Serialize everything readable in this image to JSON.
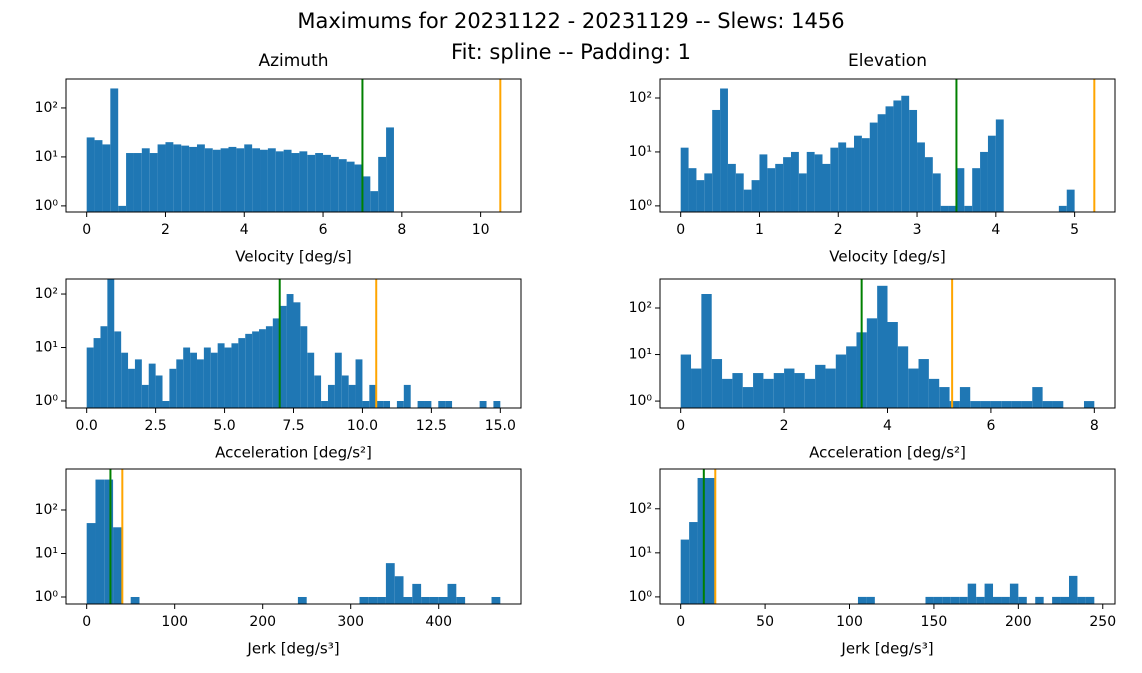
{
  "title_lines": [
    "Maximums for 20231122 - 20231129 -- Slews: 1456",
    "Fit: spline -- Padding: 1"
  ],
  "chart_data": [
    {
      "type": "histogram",
      "title": "Azimuth",
      "xlabel": "Velocity [deg/s]",
      "color": "#1f77b4",
      "log_y": true,
      "bins": [
        0,
        0.2,
        0.4,
        0.6,
        0.8,
        1.0,
        1.2,
        1.4,
        1.6,
        1.8,
        2.0,
        2.2,
        2.4,
        2.6,
        2.8,
        3.0,
        3.2,
        3.4,
        3.6,
        3.8,
        4.0,
        4.2,
        4.4,
        4.6,
        4.8,
        5.0,
        5.2,
        5.4,
        5.6,
        5.8,
        6.0,
        6.2,
        6.4,
        6.6,
        6.8,
        7.0,
        7.2,
        7.4,
        7.6,
        7.8
      ],
      "counts": [
        25,
        22,
        18,
        250,
        1,
        12,
        12,
        15,
        12,
        18,
        20,
        18,
        17,
        16,
        18,
        15,
        14,
        15,
        16,
        15,
        18,
        15,
        14,
        15,
        13,
        14,
        12,
        13,
        11,
        12,
        11,
        10,
        9,
        8,
        7,
        4,
        2,
        10,
        40
      ],
      "vlines": [
        {
          "x": 7,
          "color": "green"
        },
        {
          "x": 10.5,
          "color": "orange"
        }
      ],
      "xlim": [
        -0.525,
        11.025
      ],
      "xticks": [
        0,
        2,
        4,
        6,
        8,
        10
      ],
      "ylim": [
        0.75,
        390
      ],
      "yticks": [
        {
          "value": 1,
          "label": "10⁰"
        },
        {
          "value": 10,
          "label": "10¹"
        },
        {
          "value": 100,
          "label": "10²"
        }
      ]
    },
    {
      "type": "histogram",
      "title": "Elevation",
      "xlabel": "Velocity [deg/s]",
      "color": "#1f77b4",
      "log_y": true,
      "bins": [
        0,
        0.1,
        0.2,
        0.3,
        0.4,
        0.5,
        0.6,
        0.7,
        0.8,
        0.9,
        1.0,
        1.1,
        1.2,
        1.3,
        1.4,
        1.5,
        1.6,
        1.7,
        1.8,
        1.9,
        2.0,
        2.1,
        2.2,
        2.3,
        2.4,
        2.5,
        2.6,
        2.7,
        2.8,
        2.9,
        3.0,
        3.1,
        3.2,
        3.3,
        3.4,
        3.5,
        3.6,
        3.7,
        3.8,
        3.9,
        4.0,
        4.1,
        4.2,
        4.3,
        4.4,
        4.5,
        4.6,
        4.7,
        4.8,
        4.9,
        5.0
      ],
      "counts": [
        12,
        5,
        3,
        4,
        60,
        150,
        6,
        4,
        2,
        3,
        9,
        5,
        6,
        8,
        10,
        4,
        10,
        9,
        6,
        12,
        15,
        12,
        20,
        18,
        35,
        50,
        70,
        90,
        110,
        60,
        15,
        8,
        4,
        1,
        1,
        5,
        1,
        5,
        10,
        20,
        40,
        0,
        0,
        0,
        0,
        0,
        0,
        0,
        1,
        2
      ],
      "vlines": [
        {
          "x": 3.5,
          "color": "green"
        },
        {
          "x": 5.25,
          "color": "orange"
        }
      ],
      "xlim": [
        -0.2625,
        5.5125
      ],
      "xticks": [
        0,
        1,
        2,
        3,
        4,
        5
      ],
      "ylim": [
        0.77,
        225
      ],
      "yticks": [
        {
          "value": 1,
          "label": "10⁰"
        },
        {
          "value": 10,
          "label": "10¹"
        },
        {
          "value": 100,
          "label": "10²"
        }
      ]
    },
    {
      "type": "histogram",
      "xlabel": "Acceleration [deg/s²]",
      "color": "#1f77b4",
      "log_y": true,
      "bins": [
        0,
        0.25,
        0.5,
        0.75,
        1.0,
        1.25,
        1.5,
        1.75,
        2.0,
        2.25,
        2.5,
        2.75,
        3.0,
        3.25,
        3.5,
        3.75,
        4.0,
        4.25,
        4.5,
        4.75,
        5.0,
        5.25,
        5.5,
        5.75,
        6.0,
        6.25,
        6.5,
        6.75,
        7.0,
        7.25,
        7.5,
        7.75,
        8.0,
        8.25,
        8.5,
        8.75,
        9.0,
        9.25,
        9.5,
        9.75,
        10.0,
        10.25,
        10.5,
        10.75,
        11.0,
        11.25,
        11.5,
        11.75,
        12.0,
        12.25,
        12.5,
        12.75,
        13.0,
        13.25,
        13.5,
        13.75,
        14.0,
        14.25,
        14.5,
        14.75,
        15.0
      ],
      "counts": [
        10,
        15,
        25,
        200,
        20,
        8,
        4,
        6,
        2,
        5,
        3,
        1,
        4,
        6,
        10,
        8,
        6,
        10,
        8,
        12,
        10,
        12,
        15,
        18,
        20,
        22,
        25,
        35,
        60,
        100,
        70,
        25,
        8,
        3,
        1,
        2,
        8,
        3,
        2,
        6,
        1,
        2,
        1,
        1,
        0,
        1,
        2,
        0,
        1,
        1,
        0,
        1,
        1,
        0,
        0,
        0,
        0,
        1,
        0,
        1
      ],
      "vlines": [
        {
          "x": 7,
          "color": "green"
        },
        {
          "x": 10.5,
          "color": "orange"
        }
      ],
      "xlim": [
        -0.75,
        15.75
      ],
      "xticks": [
        {
          "value": 0,
          "label": "0.0"
        },
        2.5,
        {
          "value": 5,
          "label": "5.0"
        },
        7.5,
        {
          "value": 10,
          "label": "10.0"
        },
        12.5,
        {
          "value": 15,
          "label": "15.0"
        }
      ],
      "ylim": [
        0.74,
        191
      ],
      "yticks": [
        {
          "value": 1,
          "label": "10⁰"
        },
        {
          "value": 10,
          "label": "10¹"
        },
        {
          "value": 100,
          "label": "10²"
        }
      ]
    },
    {
      "type": "histogram",
      "xlabel": "Acceleration [deg/s²]",
      "color": "#1f77b4",
      "log_y": true,
      "bins": [
        0,
        0.2,
        0.4,
        0.6,
        0.8,
        1.0,
        1.2,
        1.4,
        1.6,
        1.8,
        2.0,
        2.2,
        2.4,
        2.6,
        2.8,
        3.0,
        3.2,
        3.4,
        3.6,
        3.8,
        4.0,
        4.2,
        4.4,
        4.6,
        4.8,
        5.0,
        5.2,
        5.4,
        5.6,
        5.8,
        6.0,
        6.2,
        6.4,
        6.6,
        6.8,
        7.0,
        7.2,
        7.4,
        7.6,
        7.8,
        8.0
      ],
      "counts": [
        10,
        5,
        200,
        8,
        3,
        4,
        2,
        4,
        3,
        4,
        5,
        4,
        3,
        6,
        5,
        10,
        15,
        30,
        60,
        300,
        50,
        15,
        5,
        8,
        3,
        2,
        1,
        2,
        1,
        1,
        1,
        1,
        1,
        1,
        2,
        1,
        1,
        0,
        0,
        1
      ],
      "vlines": [
        {
          "x": 3.5,
          "color": "green"
        },
        {
          "x": 5.25,
          "color": "orange"
        }
      ],
      "xlim": [
        -0.4,
        8.4
      ],
      "xticks": [
        0,
        2,
        4,
        6,
        8
      ],
      "ylim": [
        0.71,
        420
      ],
      "yticks": [
        {
          "value": 1,
          "label": "10⁰"
        },
        {
          "value": 10,
          "label": "10¹"
        },
        {
          "value": 100,
          "label": "10²"
        }
      ]
    },
    {
      "type": "histogram",
      "xlabel": "Jerk [deg/s³]",
      "color": "#1f77b4",
      "log_y": true,
      "bins": [
        0,
        10,
        20,
        30,
        40,
        50,
        60,
        70,
        80,
        90,
        100,
        110,
        120,
        130,
        140,
        150,
        160,
        170,
        180,
        190,
        200,
        210,
        220,
        230,
        240,
        250,
        260,
        270,
        280,
        290,
        300,
        310,
        320,
        330,
        340,
        350,
        360,
        370,
        380,
        390,
        400,
        410,
        420,
        430,
        440,
        450,
        460,
        470
      ],
      "counts": [
        50,
        500,
        500,
        40,
        0,
        1,
        0,
        0,
        0,
        0,
        0,
        0,
        0,
        0,
        0,
        0,
        0,
        0,
        0,
        0,
        0,
        0,
        0,
        0,
        1,
        0,
        0,
        0,
        0,
        0,
        0,
        1,
        1,
        1,
        6,
        3,
        1,
        2,
        1,
        1,
        1,
        2,
        1,
        0,
        0,
        0,
        1
      ],
      "vlines": [
        {
          "x": 27,
          "color": "green"
        },
        {
          "x": 40.5,
          "color": "orange"
        }
      ],
      "xlim": [
        -23.5,
        493.5
      ],
      "xticks": [
        0,
        100,
        200,
        300,
        400
      ],
      "ylim": [
        0.69,
        875
      ],
      "yticks": [
        {
          "value": 1,
          "label": "10⁰"
        },
        {
          "value": 10,
          "label": "10¹"
        },
        {
          "value": 100,
          "label": "10²"
        }
      ]
    },
    {
      "type": "histogram",
      "xlabel": "Jerk [deg/s³]",
      "color": "#1f77b4",
      "log_y": true,
      "bins": [
        0,
        5,
        10,
        15,
        20,
        25,
        30,
        35,
        40,
        45,
        50,
        55,
        60,
        65,
        70,
        75,
        80,
        85,
        90,
        95,
        100,
        105,
        110,
        115,
        120,
        125,
        130,
        135,
        140,
        145,
        150,
        155,
        160,
        165,
        170,
        175,
        180,
        185,
        190,
        195,
        200,
        205,
        210,
        215,
        220,
        225,
        230,
        235,
        240,
        245
      ],
      "counts": [
        20,
        50,
        500,
        500,
        0,
        0,
        0,
        0,
        0,
        0,
        0,
        0,
        0,
        0,
        0,
        0,
        0,
        0,
        0,
        0,
        0,
        1,
        1,
        0,
        0,
        0,
        0,
        0,
        0,
        1,
        1,
        1,
        1,
        1,
        2,
        1,
        2,
        1,
        1,
        2,
        1,
        0,
        1,
        0,
        1,
        1,
        3,
        1,
        1
      ],
      "vlines": [
        {
          "x": 13.7,
          "color": "green"
        },
        {
          "x": 20.5,
          "color": "orange"
        }
      ],
      "xlim": [
        -12.25,
        257.25
      ],
      "xticks": [
        0,
        50,
        100,
        150,
        200,
        250
      ],
      "ylim": [
        0.69,
        800
      ],
      "yticks": [
        {
          "value": 1,
          "label": "10⁰"
        },
        {
          "value": 10,
          "label": "10¹"
        },
        {
          "value": 100,
          "label": "10²"
        }
      ]
    }
  ]
}
